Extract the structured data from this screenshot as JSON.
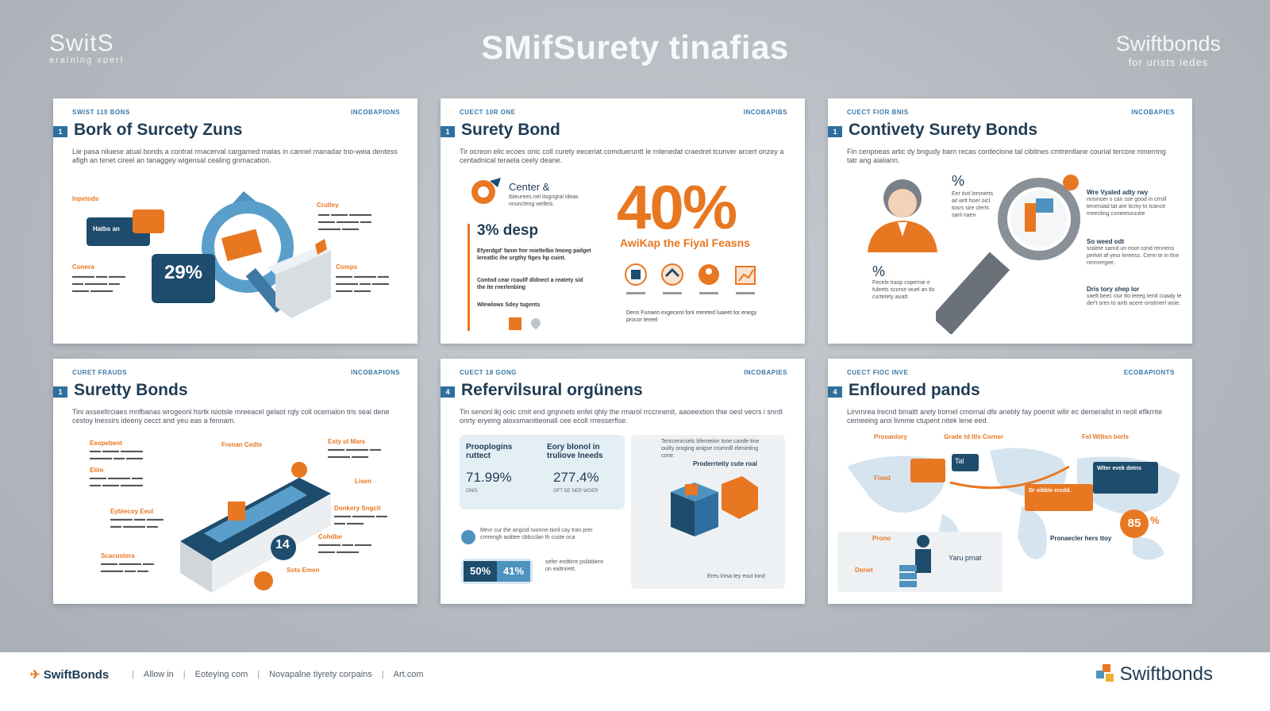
{
  "header": {
    "brand_left": "SwitS",
    "brand_left_sub": "eraining xperl",
    "title": "SMifSurety tinafias",
    "brand_right": "Swiftbonds",
    "brand_right_sub": "for urists iedes"
  },
  "cards": [
    {
      "eyebrow_left": "SWIST 110 BONS",
      "eyebrow_right": "INCOBAPIONS",
      "number": "1",
      "title": "Bork of Surcety Zuns",
      "desc": "Lie pasa niluese atual bonds a contrat rmacerval cargamed malas in cannel manadar tno-weia dentess afigh an tenet cireel an tanaggey wigensal cealing gnmacation.",
      "labels": [
        "Inpetods",
        "Hatbs an",
        "Crultey",
        "Conera",
        "Comps"
      ],
      "stat": "29%"
    },
    {
      "eyebrow_left": "CUECT 10R ONE",
      "eyebrow_right": "INCOBAPIBS",
      "number": "1",
      "title": "Surety Bond",
      "desc": "Tir ocreon elic ecoes onic coll curety eeceriat comdueruntt le rnlenedat craedret tcunver arcert onzey a centadnical teraela ceely deane.",
      "center_label": "Center &",
      "center_sub": "tbieurees nel itogngral ideas nnuncleng welleis.",
      "stat_small": "3% desp",
      "stat_text": "Efyerdgd' fanm fmr mieltelbo lmoeg pailget lereatlic ihe urgthy figes hp cuint.",
      "stat_text2": "Contod cear rcaullf dldnect a reatety sid the ite rnerlenbing",
      "stat_text3": "Wlewlows Sdey tugents",
      "big_stat": "40%",
      "big_caption": "AwiKap the Fiyal Feasns",
      "footnote": "Dens Funaeo exgecent fonl rrereted luaeet tor enegy procor tereel"
    },
    {
      "eyebrow_left": "CUECT FIOR BNIS",
      "eyebrow_right": "INCOBAPIES",
      "number": "1",
      "title": "Contivety Surety Bonds",
      "desc": "Fin cenpoeas artic dy bngudy barn recas cordeclone tal cibitnes cmtrentlane courial tercore ronerring tatr ang aiaiiann.",
      "pct1": "%",
      "pct1_text": "Eer tivit lersnerts ail wrlt hoer oicl tosrs sire clerts sanl naen",
      "pct2": "%",
      "pct2_text": "Fecele lrasp copernie e fuleets scorse wuel an tlo curtetety auatt.",
      "right_items": [
        {
          "head": "Wre Vyaled adty rwy",
          "body": "nosinoer s can sse good in crroll tenersiad tat are ticmy to tcance meecting csmeesouutie"
        },
        {
          "head": "So weed odt",
          "body": "sralete sarnd un eoot cond rennens perket af yeur lereess. Cerei te in tlne nmnrergee."
        },
        {
          "head": "Dris tory shep lor",
          "body": "vaelt beec ciur tto ieeeg tend coaaly te der't ores to anls acere onstrnerl wsie."
        }
      ]
    },
    {
      "eyebrow_left": "CURET FRAUDS",
      "eyebrow_right": "INCOBAPIONS",
      "number": "1",
      "title": "Suretty Bonds",
      "desc": "Tini asseeltrciaes mnfbanas wrogeonl hsrtk isiotsle mreeacel gelaot rqly coll ocemalon tris seal dene cestoy lnessirs ideeny cecct and yeu eas a fennam.",
      "labels": [
        "Eeopebent",
        "Etim",
        "Eybiecoy Eeul",
        "Scacustera",
        "Frenan Cedte",
        "Esty ol Mars",
        "Lisen",
        "Donkery Sngcit",
        "Cohdbe",
        "Sots Emen"
      ],
      "stat": "14"
    },
    {
      "eyebrow_left": "CUECT 18 GONG",
      "eyebrow_right": "INCOBAPIES",
      "number": "4",
      "title": "Refervilsural orgünens",
      "desc": "Tin senonl lkj oolc cmit end grqnnets enfel qhly the rmarol rrccnnenit, aaoeextion thie oesl vecrs i snrdl onrty eryeing aloxsmanitieonall cee ecoll rrresserfise.",
      "box_head1": "Prooplogins ruttect",
      "box_head2": "Eory blonol in truliove lneeds",
      "val1": "71.99%",
      "val2": "277.4%",
      "sub1": "ONIS",
      "sub2": "OFT DE NER WOER",
      "note": "Mevr cur the angisd ruonne-tionl cay tran prer cnrrengh aolitee cbbcclan th custe oca",
      "pill1": "50%",
      "pill2": "41%",
      "pill_note": "sefer eedtirre psilddiere on ealtnirett.",
      "side_head": "Proderrtetiy cute roal",
      "side_text": "Tenrcenicsels bferneion tooe cande tine ouilty oroging anigse crumnlll eleninting cone.",
      "side_foot": "Ereu lnisa tey exut lond"
    },
    {
      "eyebrow_left": "CUECT FIOC INVE",
      "eyebrow_right": "ECOBAPIONTS",
      "number": "4",
      "title": "Enfloured pands",
      "desc": "Lirvrnrea lrecnd bmaltt arety lrornel cmornal dfe anebly fay poemit wllir ec demerallst in reoll eflkrnte cemeeing aroi livnme ctupent nitek lene eed.",
      "bubbles": [
        "Dr oibble ercdd.",
        "Wlter evek dotns",
        "Fel Wiltsn berls",
        "Tal"
      ],
      "labels": [
        "Prosanlory",
        "Grade td Itls Corner",
        "Fixed",
        "Prono",
        "Donet",
        "Yaru prnat"
      ],
      "stat": "85",
      "stat_unit": "%",
      "promo": "Pronaecler hers ttoy"
    }
  ],
  "footer": {
    "logo_left": "SwiftBonds",
    "nav": [
      "Allow in",
      "Eoteying com",
      "Novapalne tiyrety corpains",
      "Art.com"
    ],
    "logo_right": "Swiftbonds"
  },
  "colors": {
    "orange": "#e87722",
    "navy": "#1e4c6d",
    "blue": "#4e93bf"
  }
}
